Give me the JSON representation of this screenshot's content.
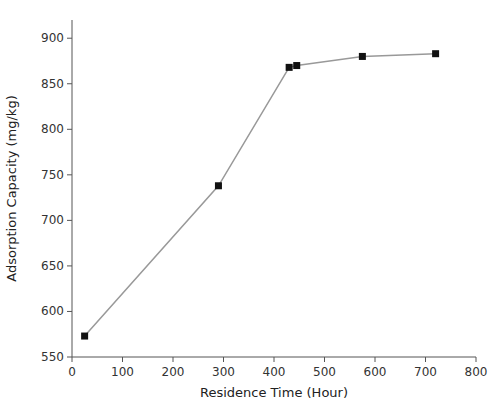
{
  "chart_data": {
    "type": "line",
    "xlabel": "Residence Time (Hour)",
    "ylabel": "Adsorption Capacity (mg/kg)",
    "x": [
      25,
      290,
      430,
      445,
      575,
      720
    ],
    "values": [
      573,
      738,
      868,
      870,
      880,
      883
    ],
    "xlim": [
      0,
      800
    ],
    "ylim": [
      550,
      920
    ],
    "xticks": [
      0,
      100,
      200,
      300,
      400,
      500,
      600,
      700,
      800
    ],
    "yticks": [
      550,
      600,
      650,
      700,
      750,
      800,
      850,
      900
    ],
    "color": "#999999",
    "marker": "square",
    "grid": false
  }
}
